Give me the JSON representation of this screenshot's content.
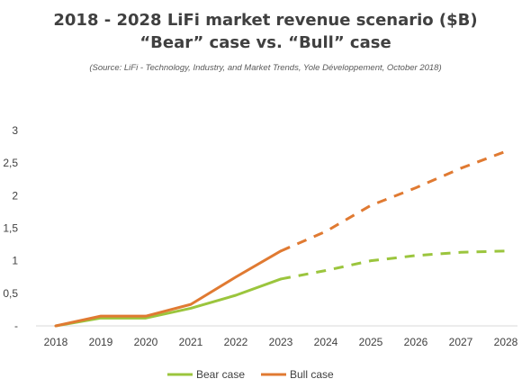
{
  "chart_data": {
    "type": "line",
    "title_line1": "2018 - 2028 LiFi market revenue scenario ($B)",
    "title_line2": "“Bear” case vs. “Bull” case",
    "subtitle": "(Source: LiFi - Technology, Industry, and Market Trends, Yole Développement, October 2018)",
    "x": [
      "2018",
      "2019",
      "2020",
      "2021",
      "2022",
      "2023",
      "2024",
      "2025",
      "2026",
      "2027",
      "2028"
    ],
    "y_ticks": [
      "-",
      "0,5",
      "1",
      "1,5",
      "2",
      "2,5",
      "3"
    ],
    "ylim": [
      0,
      3
    ],
    "projection_start": "2023",
    "series": [
      {
        "name": "Bear case",
        "color": "#9BC53D",
        "values": [
          0,
          0.12,
          0.12,
          0.27,
          0.47,
          0.72,
          0.85,
          1.0,
          1.08,
          1.13,
          1.15
        ]
      },
      {
        "name": "Bull case",
        "color": "#E07A32",
        "values": [
          0,
          0.15,
          0.15,
          0.33,
          0.75,
          1.15,
          1.45,
          1.85,
          2.12,
          2.42,
          2.68
        ]
      }
    ],
    "legend_position": "bottom"
  }
}
